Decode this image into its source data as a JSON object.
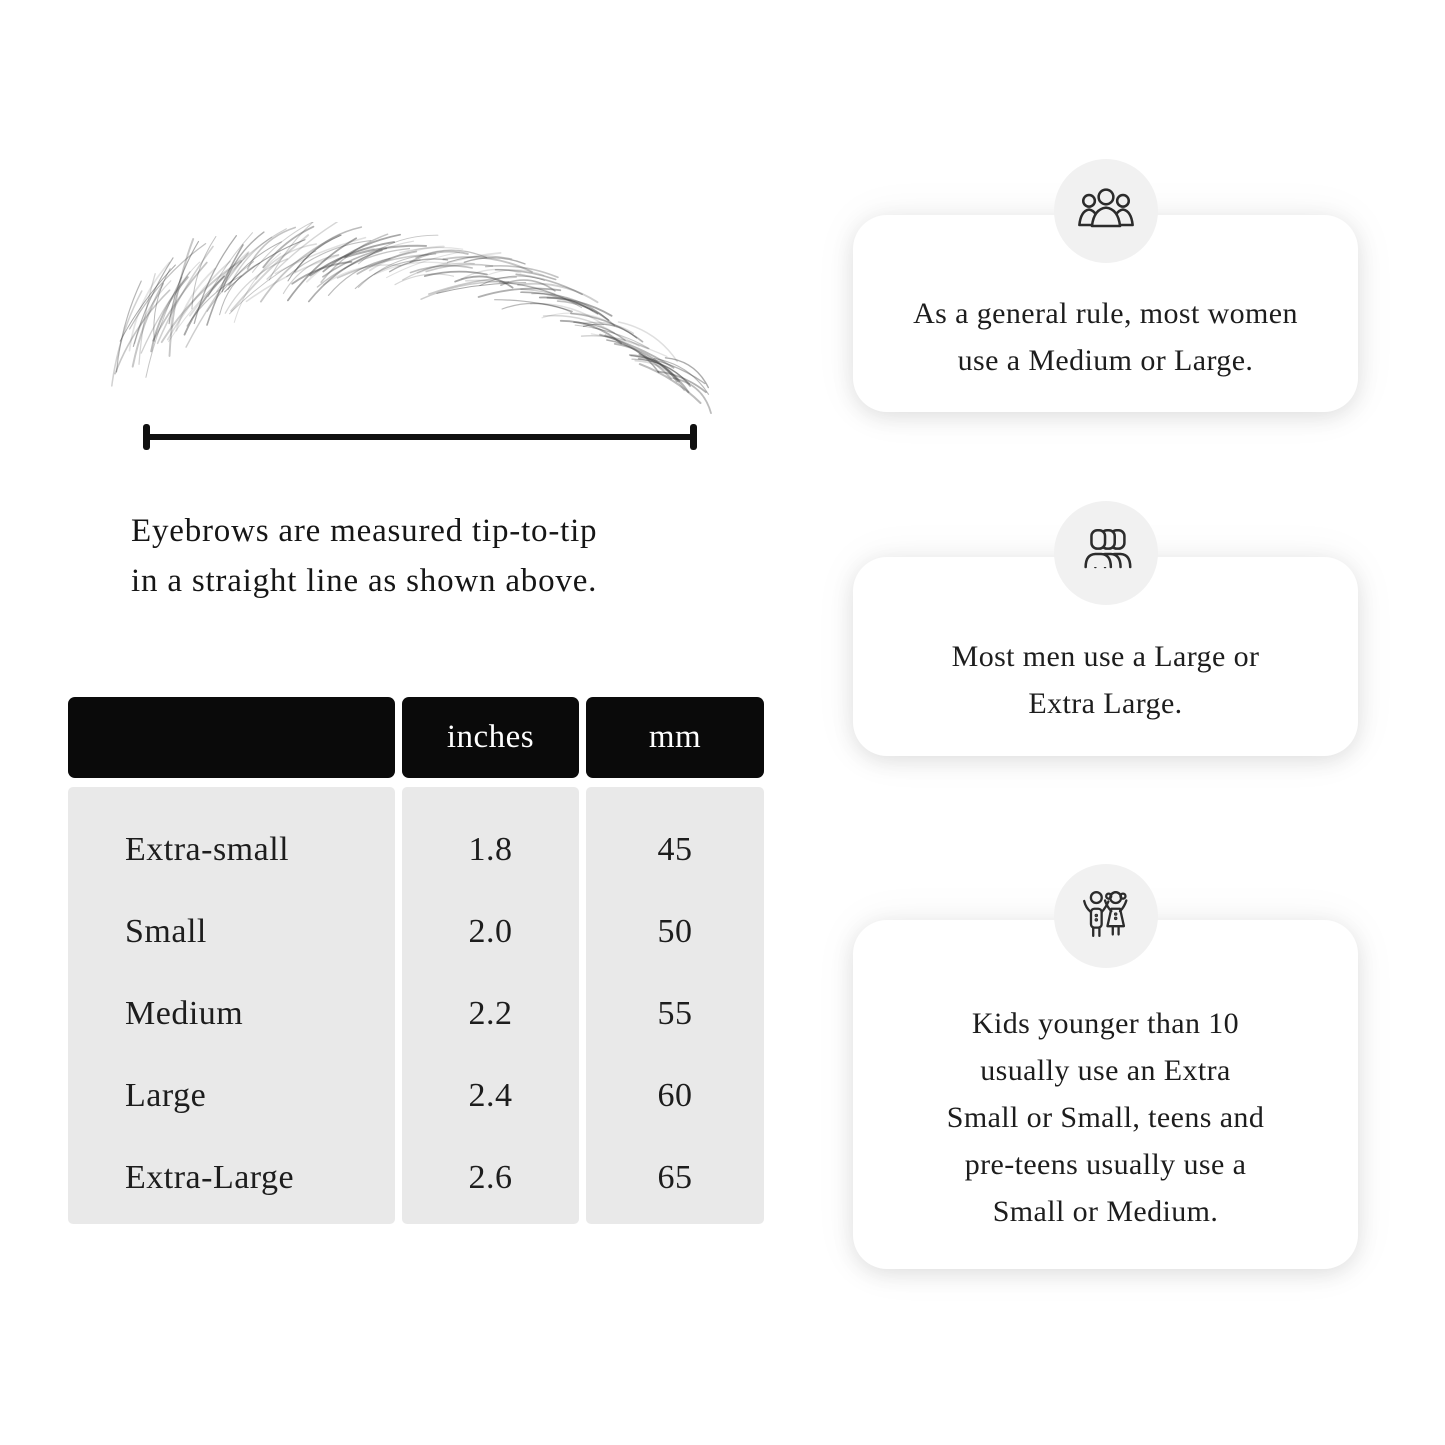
{
  "colors": {
    "page_bg": "#ffffff",
    "table_header_bg": "#0a0a0a",
    "table_header_text": "#ffffff",
    "table_body_bg": "#e9e9e9",
    "icon_circle_bg": "#f1f1f1",
    "card_bg": "#ffffff",
    "text": "#1d1d1d"
  },
  "diagram": {
    "illustration": "eyebrow-sketch-measured-tip-to-tip",
    "caption_line1": "Eyebrows are measured tip-to-tip",
    "caption_line2": "in a straight line as shown above."
  },
  "size_table": {
    "columns": [
      "",
      "inches",
      "mm"
    ],
    "rows": [
      {
        "label": "Extra-small",
        "inches": "1.8",
        "mm": "45"
      },
      {
        "label": "Small",
        "inches": "2.0",
        "mm": "50"
      },
      {
        "label": "Medium",
        "inches": "2.2",
        "mm": "55"
      },
      {
        "label": "Large",
        "inches": "2.4",
        "mm": "60"
      },
      {
        "label": "Extra-Large",
        "inches": "2.6",
        "mm": "65"
      }
    ]
  },
  "cards": [
    {
      "icon": "women-group-icon",
      "lines": [
        "As a general rule, most women",
        "use a Medium or Large."
      ]
    },
    {
      "icon": "men-group-icon",
      "lines": [
        "Most men use a Large or",
        "Extra Large."
      ]
    },
    {
      "icon": "kids-icon",
      "lines": [
        "Kids younger than 10",
        "usually use an Extra",
        "Small or Small, teens and",
        "pre-teens usually use a",
        "Small or Medium."
      ]
    }
  ]
}
